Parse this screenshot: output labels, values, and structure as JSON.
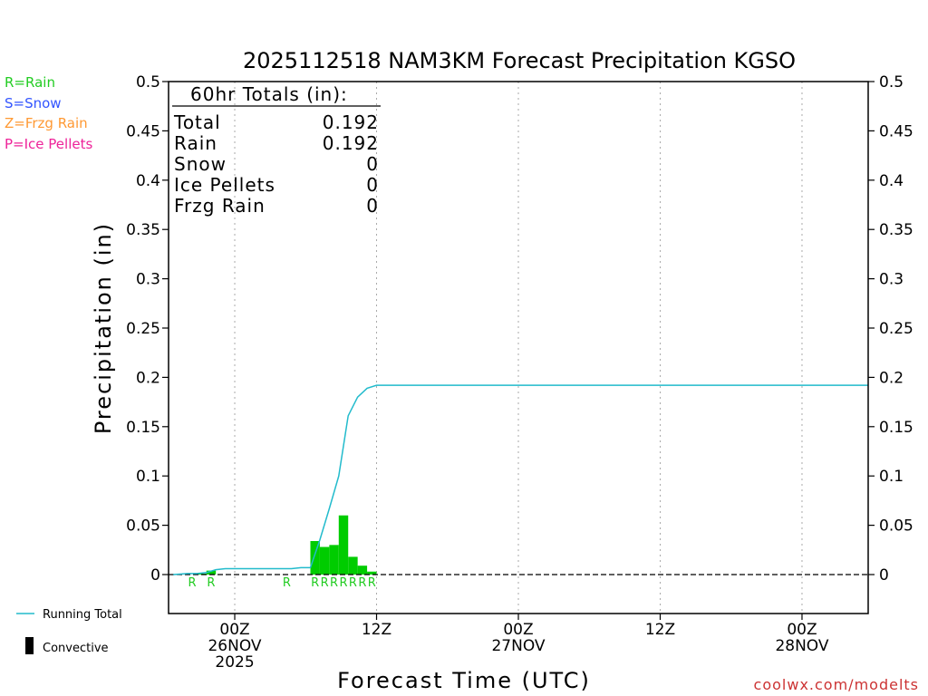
{
  "chart_data": {
    "type": "bar",
    "title": "2025112518 NAM3KM Forecast Precipitation KGSO",
    "xlabel": "Forecast Time (UTC)",
    "ylabel": "Precipitation (in)",
    "ylim": [
      0,
      0.5
    ],
    "xlim_hours": [
      -7,
      67
    ],
    "y_ticks": [
      "0",
      "0.05",
      "0.1",
      "0.15",
      "0.2",
      "0.25",
      "0.3",
      "0.35",
      "0.4",
      "0.45",
      "0.5"
    ],
    "x_ticks": [
      {
        "hour": 0,
        "l1": "00Z",
        "l2": "26NOV",
        "l3": "2025"
      },
      {
        "hour": 15,
        "l1": "12Z",
        "l2": "",
        "l3": ""
      },
      {
        "hour": 30,
        "l1": "00Z",
        "l2": "27NOV",
        "l3": ""
      },
      {
        "hour": 45,
        "l1": "12Z",
        "l2": "",
        "l3": ""
      },
      {
        "hour": 60,
        "l1": "00Z",
        "l2": "28NOV",
        "l3": ""
      }
    ],
    "legend": [
      {
        "label": "R=Rain",
        "color": "#22cc22"
      },
      {
        "label": "S=Snow",
        "color": "#3355ff"
      },
      {
        "label": "Z=Frzg Rain",
        "color": "#ff9933"
      },
      {
        "label": "P=Ice Pellets",
        "color": "#ee2299"
      }
    ],
    "series_legend": {
      "running_total": "Running Total",
      "convective": "Convective"
    },
    "totals": {
      "heading": "60hr Totals (in):",
      "rows": [
        {
          "label": "Total",
          "value": "0.192"
        },
        {
          "label": "Rain",
          "value": "0.192"
        },
        {
          "label": "Snow",
          "value": "0"
        },
        {
          "label": "Ice Pellets",
          "value": "0"
        },
        {
          "label": "Frzg Rain",
          "value": "0"
        }
      ]
    },
    "bars": [
      {
        "hour": -3,
        "value": 0.001
      },
      {
        "hour": -2,
        "value": 0.004
      },
      {
        "hour": 9,
        "value": 0.034
      },
      {
        "hour": 10,
        "value": 0.028
      },
      {
        "hour": 11,
        "value": 0.03
      },
      {
        "hour": 12,
        "value": 0.06
      },
      {
        "hour": 13,
        "value": 0.018
      },
      {
        "hour": 14,
        "value": 0.009
      },
      {
        "hour": 15,
        "value": 0.003
      }
    ],
    "running_total": {
      "hours": [
        -6.5,
        -5,
        -4,
        -3,
        -2,
        -1,
        0,
        1,
        2,
        3,
        4,
        5,
        6,
        7,
        8,
        9,
        10,
        11,
        12,
        13,
        14,
        15,
        16,
        20,
        30,
        40,
        50,
        60,
        67
      ],
      "values": [
        0,
        0.001,
        0.001,
        0.002,
        0.005,
        0.006,
        0.006,
        0.006,
        0.006,
        0.006,
        0.006,
        0.006,
        0.006,
        0.007,
        0.007,
        0.035,
        0.067,
        0.1,
        0.161,
        0.18,
        0.189,
        0.192,
        0.192,
        0.192,
        0.192,
        0.192,
        0.192,
        0.192,
        0.192
      ]
    },
    "ptype_markers": [
      {
        "hour": -4,
        "label": "R"
      },
      {
        "hour": -2,
        "label": "R"
      },
      {
        "hour": 6,
        "label": "R"
      },
      {
        "hour": 9,
        "label": "R"
      },
      {
        "hour": 10,
        "label": "R"
      },
      {
        "hour": 11,
        "label": "R"
      },
      {
        "hour": 12,
        "label": "R"
      },
      {
        "hour": 13,
        "label": "R"
      },
      {
        "hour": 14,
        "label": "R"
      },
      {
        "hour": 15,
        "label": "R"
      }
    ],
    "colors": {
      "bar": "#00cc00",
      "line": "#22bbcc",
      "grid": "#aaaaaa",
      "axis": "#000000",
      "rain_marker": "#22cc22",
      "credit": "#cc3333"
    }
  },
  "credit": "coolwx.com/modelts"
}
